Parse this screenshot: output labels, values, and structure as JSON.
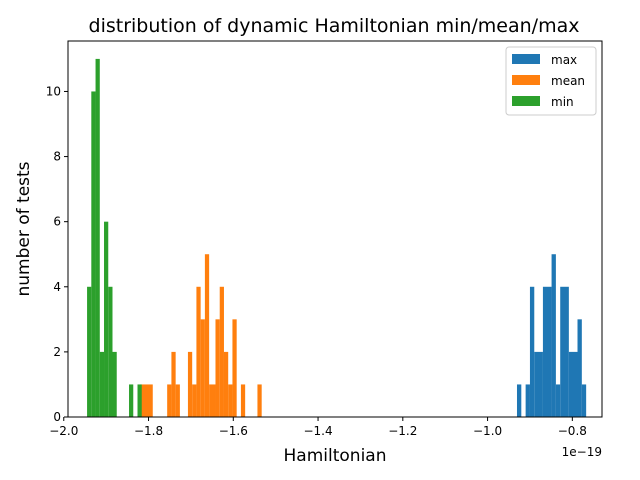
{
  "chart_data": {
    "type": "histogram",
    "title": "distribution of dynamic Hamiltonian min/mean/max",
    "xlabel": "Hamiltonian",
    "ylabel": "number of tests",
    "x_offset_label": "1e−19",
    "xlim": [
      -1.99,
      -0.73
    ],
    "ylim": [
      0,
      11.55
    ],
    "xticks": [
      -2.0,
      -1.8,
      -1.6,
      -1.4,
      -1.2,
      -1.0,
      -0.8
    ],
    "xtick_labels": [
      "−2.0",
      "−1.8",
      "−1.6",
      "−1.4",
      "−1.2",
      "−1.0",
      "−0.8"
    ],
    "yticks": [
      0,
      2,
      4,
      6,
      8,
      10
    ],
    "ytick_labels": [
      "0",
      "2",
      "4",
      "6",
      "8",
      "10"
    ],
    "grid": false,
    "legend_position": "top-right",
    "series": [
      {
        "name": "max",
        "color": "#1f77b4",
        "bins": [
          {
            "x0": -0.9306,
            "x1": -0.9204,
            "count": 1
          },
          {
            "x0": -0.9102,
            "x1": -0.9,
            "count": 1
          },
          {
            "x0": -0.9,
            "x1": -0.8898,
            "count": 4
          },
          {
            "x0": -0.8898,
            "x1": -0.8694,
            "count": 2
          },
          {
            "x0": -0.8694,
            "x1": -0.849,
            "count": 4
          },
          {
            "x0": -0.849,
            "x1": -0.8388,
            "count": 5
          },
          {
            "x0": -0.8388,
            "x1": -0.8286,
            "count": 1
          },
          {
            "x0": -0.8286,
            "x1": -0.8082,
            "count": 4
          },
          {
            "x0": -0.8082,
            "x1": -0.7878,
            "count": 2
          },
          {
            "x0": -0.7878,
            "x1": -0.7776,
            "count": 3
          },
          {
            "x0": -0.7776,
            "x1": -0.7674,
            "count": 1
          }
        ]
      },
      {
        "name": "mean",
        "color": "#ff7f0e",
        "bins": [
          {
            "x0": -1.82,
            "x1": -1.79,
            "count": 1
          },
          {
            "x0": -1.756,
            "x1": -1.746,
            "count": 1
          },
          {
            "x0": -1.746,
            "x1": -1.736,
            "count": 2
          },
          {
            "x0": -1.736,
            "x1": -1.726,
            "count": 1
          },
          {
            "x0": -1.707,
            "x1": -1.697,
            "count": 2
          },
          {
            "x0": -1.697,
            "x1": -1.687,
            "count": 1
          },
          {
            "x0": -1.687,
            "x1": -1.677,
            "count": 4
          },
          {
            "x0": -1.677,
            "x1": -1.667,
            "count": 3
          },
          {
            "x0": -1.667,
            "x1": -1.657,
            "count": 5
          },
          {
            "x0": -1.657,
            "x1": -1.642,
            "count": 1
          },
          {
            "x0": -1.642,
            "x1": -1.632,
            "count": 3
          },
          {
            "x0": -1.632,
            "x1": -1.622,
            "count": 4
          },
          {
            "x0": -1.622,
            "x1": -1.612,
            "count": 2
          },
          {
            "x0": -1.612,
            "x1": -1.602,
            "count": 1
          },
          {
            "x0": -1.602,
            "x1": -1.592,
            "count": 3
          },
          {
            "x0": -1.582,
            "x1": -1.572,
            "count": 1
          },
          {
            "x0": -1.543,
            "x1": -1.533,
            "count": 1
          }
        ]
      },
      {
        "name": "min",
        "color": "#2ca02c",
        "bins": [
          {
            "x0": -1.945,
            "x1": -1.935,
            "count": 4
          },
          {
            "x0": -1.935,
            "x1": -1.925,
            "count": 10
          },
          {
            "x0": -1.925,
            "x1": -1.915,
            "count": 11
          },
          {
            "x0": -1.915,
            "x1": -1.905,
            "count": 2
          },
          {
            "x0": -1.905,
            "x1": -1.895,
            "count": 6
          },
          {
            "x0": -1.895,
            "x1": -1.885,
            "count": 4
          },
          {
            "x0": -1.885,
            "x1": -1.875,
            "count": 2
          },
          {
            "x0": -1.846,
            "x1": -1.836,
            "count": 1
          },
          {
            "x0": -1.826,
            "x1": -1.816,
            "count": 1
          }
        ]
      }
    ]
  }
}
